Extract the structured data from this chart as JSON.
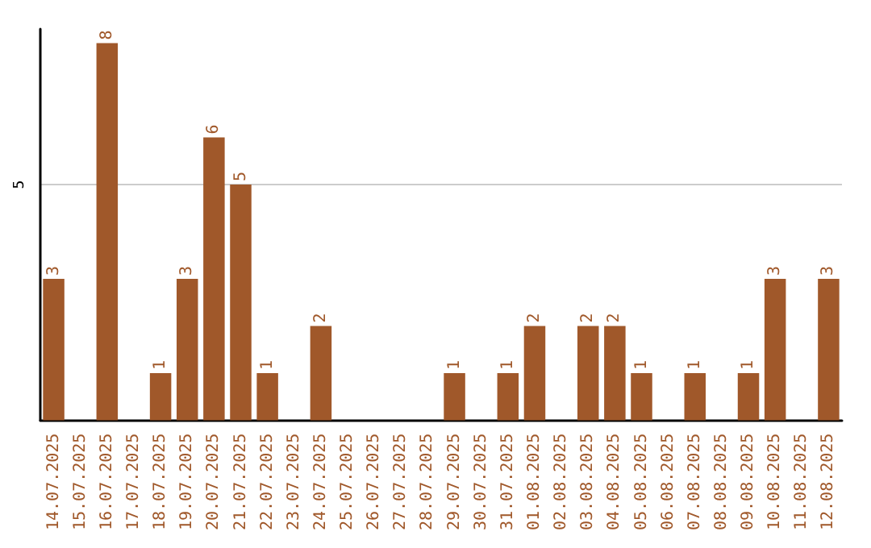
{
  "chart_data": {
    "type": "bar",
    "categories": [
      "14.07.2025",
      "15.07.2025",
      "16.07.2025",
      "17.07.2025",
      "18.07.2025",
      "19.07.2025",
      "20.07.2025",
      "21.07.2025",
      "22.07.2025",
      "23.07.2025",
      "24.07.2025",
      "25.07.2025",
      "26.07.2025",
      "27.07.2025",
      "28.07.2025",
      "29.07.2025",
      "30.07.2025",
      "31.07.2025",
      "01.08.2025",
      "02.08.2025",
      "03.08.2025",
      "04.08.2025",
      "05.08.2025",
      "06.08.2025",
      "07.08.2025",
      "08.08.2025",
      "09.08.2025",
      "10.08.2025",
      "11.08.2025",
      "12.08.2025"
    ],
    "values": [
      3,
      0,
      8,
      0,
      1,
      3,
      6,
      5,
      1,
      0,
      2,
      0,
      0,
      0,
      0,
      1,
      0,
      1,
      2,
      0,
      2,
      2,
      1,
      0,
      1,
      0,
      1,
      3,
      0,
      3
    ],
    "value_labels": [
      "3",
      null,
      "8",
      null,
      "1",
      "3",
      "6",
      "5",
      "1",
      null,
      "2",
      null,
      null,
      null,
      null,
      "1",
      null,
      "1",
      "2",
      null,
      "2",
      "2",
      "1",
      null,
      "1",
      null,
      "1",
      "3",
      null,
      "3"
    ],
    "color": "#a0582a",
    "ylim": [
      0,
      8.3
    ],
    "yticks": [
      5
    ],
    "grid": "y"
  }
}
